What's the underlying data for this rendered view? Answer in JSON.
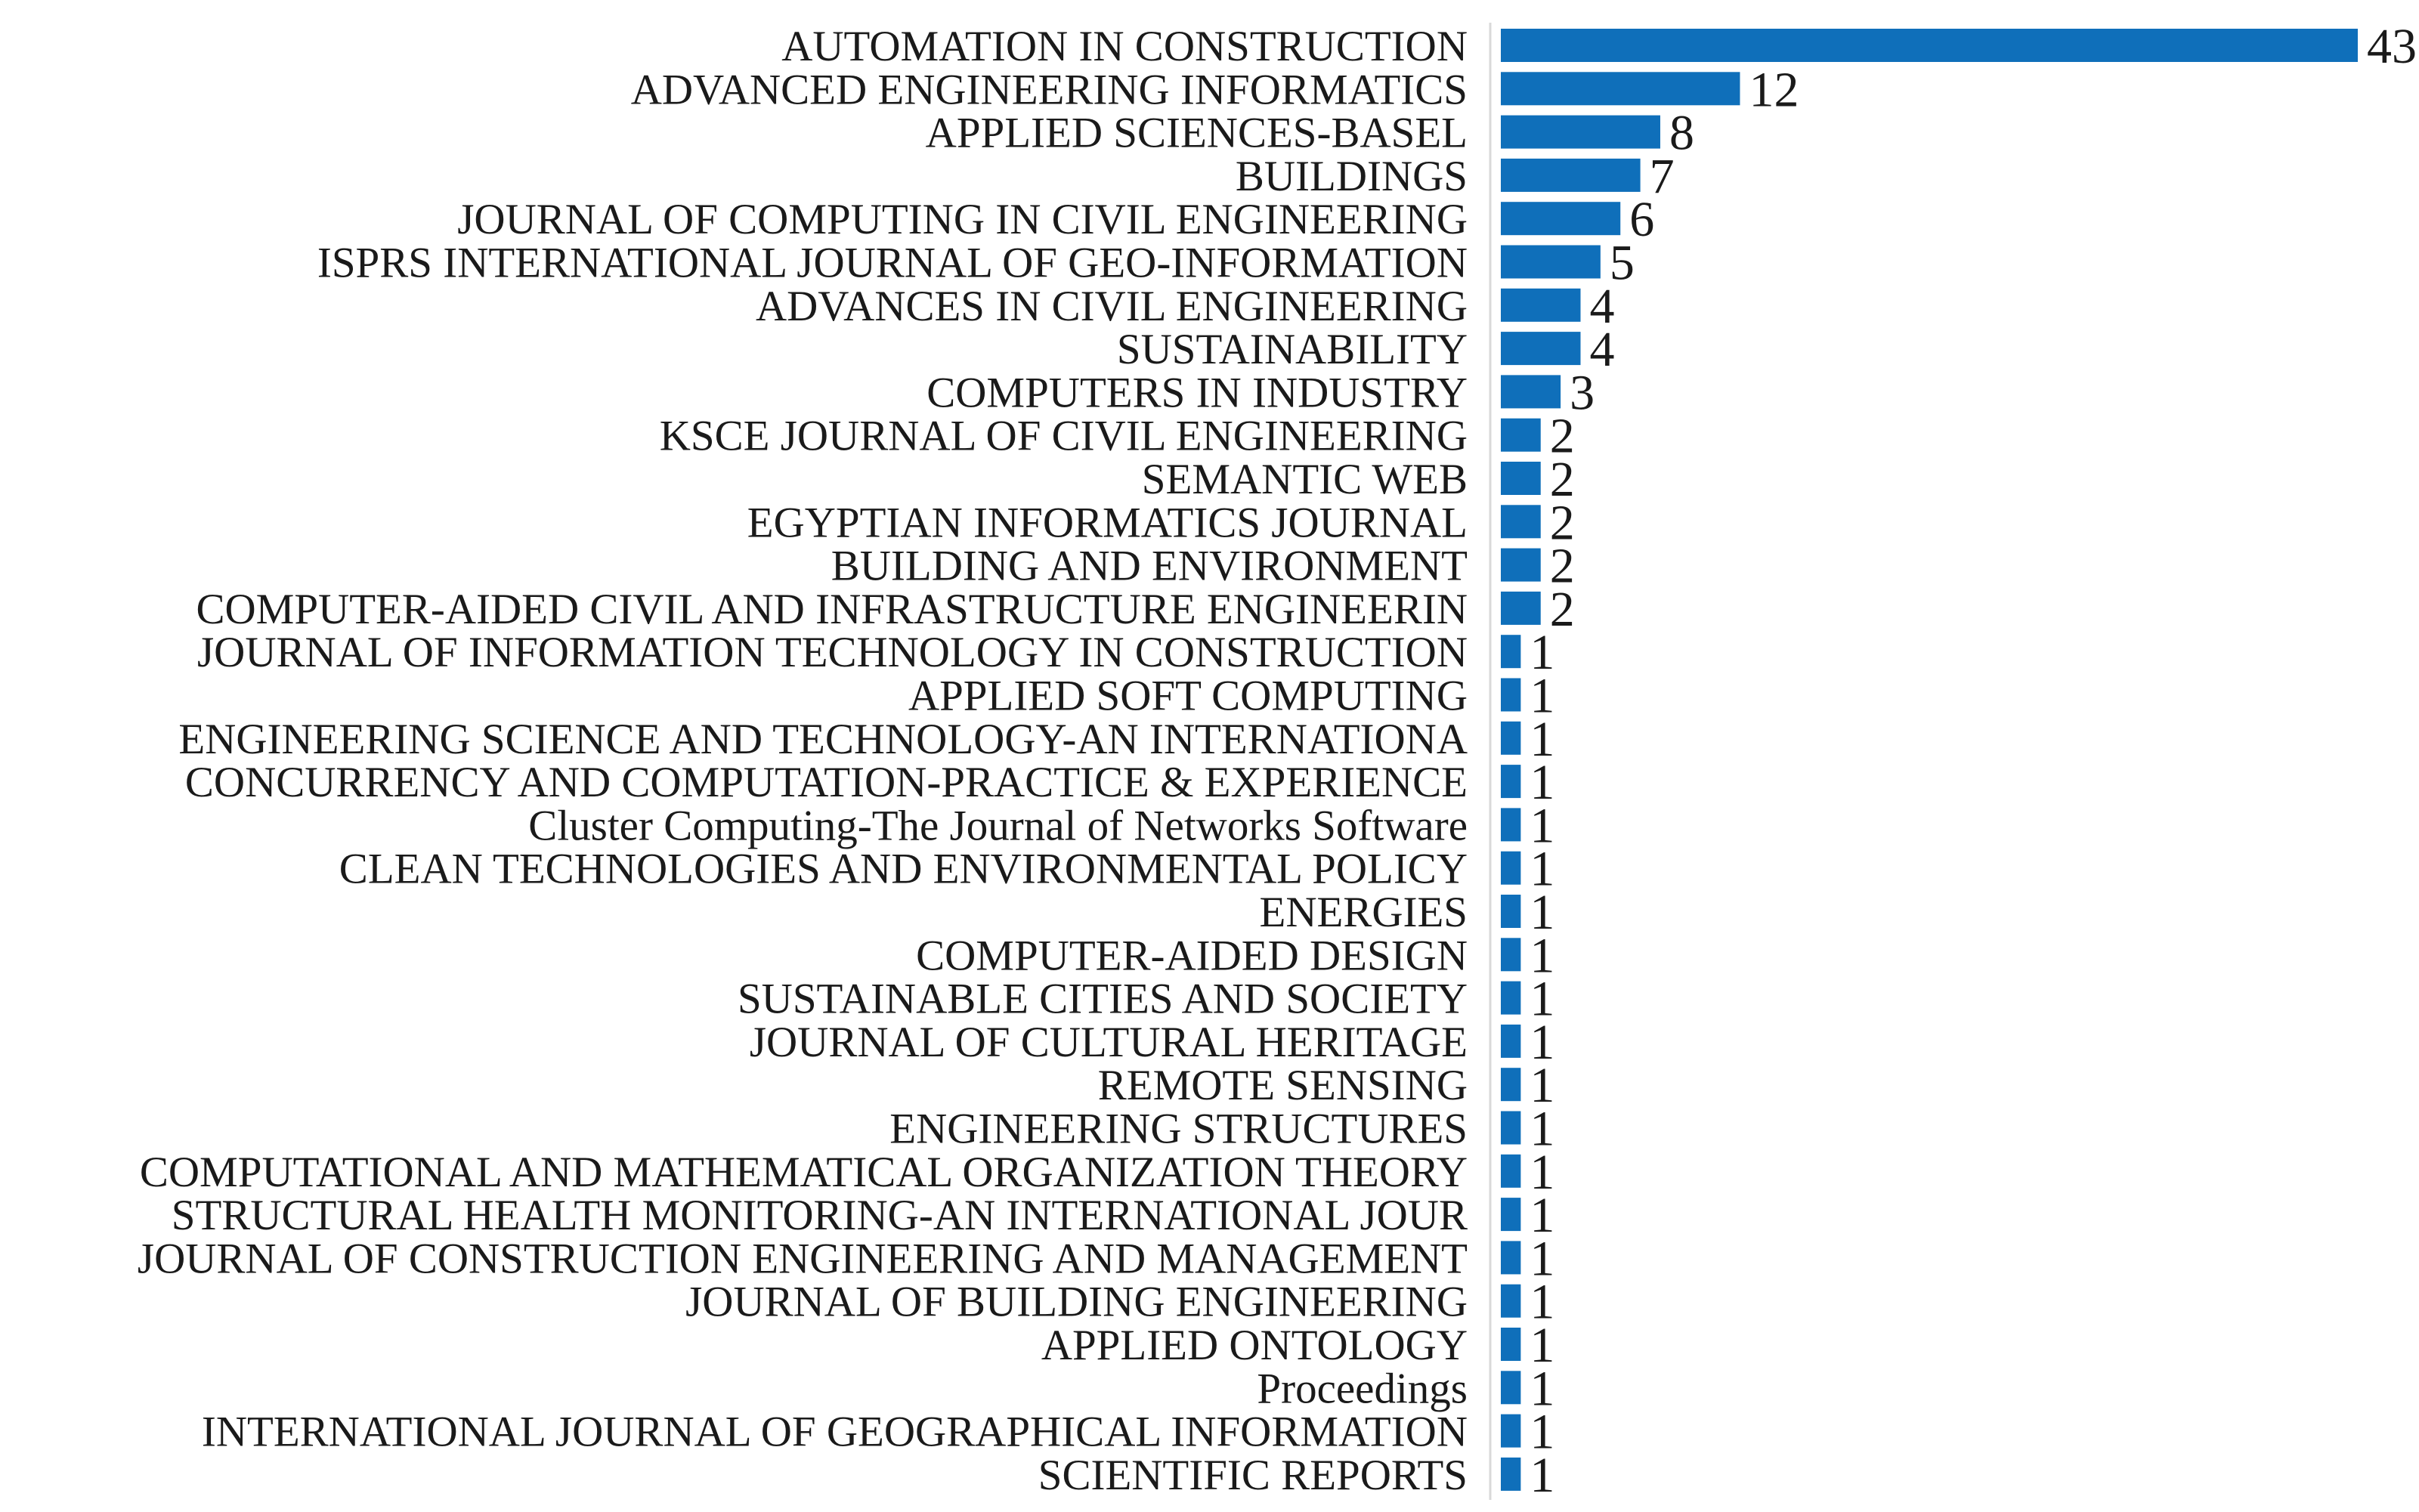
{
  "chart_data": {
    "type": "bar",
    "orientation": "horizontal",
    "title": "",
    "xlabel": "",
    "ylabel": "",
    "grid": false,
    "legend": "none",
    "bar_color": "#0f6fba",
    "categories": [
      "AUTOMATION IN CONSTRUCTION",
      "ADVANCED ENGINEERING INFORMATICS",
      "APPLIED SCIENCES-BASEL",
      "BUILDINGS",
      "JOURNAL OF COMPUTING IN CIVIL ENGINEERING",
      "ISPRS INTERNATIONAL JOURNAL OF GEO-INFORMATION",
      "ADVANCES IN CIVIL ENGINEERING",
      "SUSTAINABILITY",
      "COMPUTERS IN INDUSTRY",
      "KSCE JOURNAL OF CIVIL ENGINEERING",
      "SEMANTIC WEB",
      "EGYPTIAN INFORMATICS JOURNAL",
      "BUILDING AND ENVIRONMENT",
      "COMPUTER-AIDED CIVIL AND INFRASTRUCTURE ENGINEERIN",
      "JOURNAL OF INFORMATION TECHNOLOGY IN CONSTRUCTION",
      "APPLIED SOFT COMPUTING",
      "ENGINEERING SCIENCE AND TECHNOLOGY-AN INTERNATIONA",
      "CONCURRENCY AND COMPUTATION-PRACTICE & EXPERIENCE",
      "Cluster Computing-The Journal of Networks Software",
      "CLEAN TECHNOLOGIES AND ENVIRONMENTAL POLICY",
      "ENERGIES",
      "COMPUTER-AIDED DESIGN",
      "SUSTAINABLE CITIES AND SOCIETY",
      "JOURNAL OF CULTURAL HERITAGE",
      "REMOTE SENSING",
      "ENGINEERING STRUCTURES",
      "COMPUTATIONAL AND MATHEMATICAL ORGANIZATION THEORY",
      "STRUCTURAL HEALTH MONITORING-AN INTERNATIONAL JOUR",
      "JOURNAL OF CONSTRUCTION ENGINEERING AND MANAGEMENT",
      "JOURNAL OF BUILDING ENGINEERING",
      "APPLIED ONTOLOGY",
      "Proceedings",
      "INTERNATIONAL JOURNAL OF GEOGRAPHICAL INFORMATION",
      "SCIENTIFIC REPORTS"
    ],
    "values": [
      43,
      12,
      8,
      7,
      6,
      5,
      4,
      4,
      3,
      2,
      2,
      2,
      2,
      2,
      1,
      1,
      1,
      1,
      1,
      1,
      1,
      1,
      1,
      1,
      1,
      1,
      1,
      1,
      1,
      1,
      1,
      1,
      1,
      1
    ],
    "value_labels": [
      "43",
      "12",
      "8",
      "7",
      "6",
      "5",
      "4",
      "4",
      "3",
      "2",
      "2",
      "2",
      "2",
      "2",
      "1",
      "1",
      "1",
      "1",
      "1",
      "1",
      "1",
      "1",
      "1",
      "1",
      "1",
      "1",
      "1",
      "1",
      "1",
      "1",
      "1",
      "1",
      "1",
      "1"
    ],
    "xlim": [
      0,
      43
    ]
  }
}
